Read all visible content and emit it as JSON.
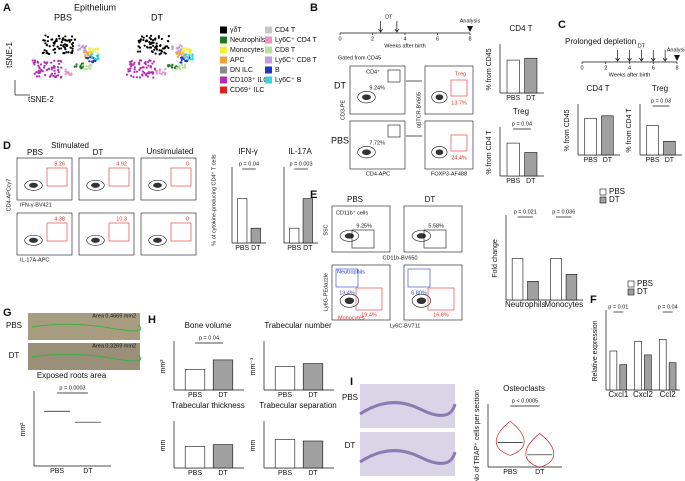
{
  "panel_letters": [
    "A",
    "B",
    "C",
    "D",
    "E",
    "F",
    "G",
    "H",
    "I"
  ],
  "conditions": [
    "PBS",
    "DT"
  ],
  "bar_colors": [
    "#ffffff",
    "#a0a0a0"
  ],
  "A": {
    "title": "Epithelium",
    "plot_titles": [
      "PBS",
      "DT"
    ],
    "x_label": "tSNE-2",
    "y_label": "tSNE-1",
    "legend": [
      {
        "name": "γδT",
        "color": "#000000"
      },
      {
        "name": "Neutrophils",
        "color": "#1f7a1f"
      },
      {
        "name": "Monocytes",
        "color": "#f3ef3a"
      },
      {
        "name": "APC",
        "color": "#f0a040"
      },
      {
        "name": "DN ILC",
        "color": "#8a8a8a"
      },
      {
        "name": "CD103⁺ ILC",
        "color": "#b42bb4"
      },
      {
        "name": "CD69⁺ ILC",
        "color": "#e02020"
      },
      {
        "name": "CD4 T",
        "color": "#c7c7c7"
      },
      {
        "name": "Ly6C⁺ CD4 T",
        "color": "#f08fc0"
      },
      {
        "name": "CD8 T",
        "color": "#b8e0a0"
      },
      {
        "name": "Ly6C⁺ CD8 T",
        "color": "#c39be0"
      },
      {
        "name": "B",
        "color": "#2035c0"
      },
      {
        "name": "Ly6C⁺ B",
        "color": "#3ad0e0"
      }
    ]
  },
  "B": {
    "timeline": {
      "event": "DT",
      "end": "Analysis",
      "label": "Weeks after birth",
      "ticks": [
        0,
        2,
        4,
        6,
        8
      ],
      "xlim": [
        0,
        8
      ],
      "dt_weeks": [
        2.5,
        3.5
      ],
      "analysis_week": 8
    },
    "flow": {
      "gate_note": "Gated from CD45",
      "rows": [
        "DT",
        "PBS"
      ],
      "gate": "CD4⁺",
      "cd4_pct": [
        "9.24%",
        "7.72%"
      ],
      "treg": "Treg",
      "treg_pct": [
        "13.7%",
        "24.4%"
      ],
      "x1": "CD4-APC",
      "y1": "CD3-PE",
      "x2": "FOXP3-AF488",
      "y2": "αβTCR-BV605"
    },
    "charts": [
      {
        "title": "CD4 T",
        "ylabel": "% from CD45",
        "ylim": [
          0,
          10
        ],
        "groups": [
          {
            "values": [
              7,
              7.4
            ]
          }
        ]
      },
      {
        "title": "Treg",
        "p": "p = 0.04",
        "ylabel": "% from CD4 T",
        "ylim": [
          0,
          20
        ],
        "groups": [
          {
            "values": [
              14,
              10
            ]
          }
        ]
      }
    ]
  },
  "C": {
    "title": "Prolonged depletion",
    "timeline": {
      "event": "DT",
      "end": "Analysis",
      "label": "Weeks after birth",
      "ticks": [
        0,
        2,
        4,
        6,
        8
      ],
      "xlim": [
        0,
        8
      ],
      "dt_weeks": [
        3,
        4,
        5,
        6,
        7
      ],
      "analysis_week": 8
    },
    "charts": [
      {
        "title": "CD4 T",
        "ylabel": "% from CD45",
        "ylim": [
          0,
          10
        ],
        "groups": [
          {
            "values": [
              7.5,
              8
            ]
          }
        ]
      },
      {
        "title": "Treg",
        "p": "p = 0.03",
        "ylabel": "% from CD4 T",
        "ylim": [
          0,
          25
        ],
        "groups": [
          {
            "values": [
              15,
              7
            ]
          }
        ]
      }
    ]
  },
  "D": {
    "stimulated": "Stimulated",
    "unstimulated": "Unstimulated",
    "pct": [
      [
        "9.26",
        "4.92",
        "0"
      ],
      [
        "4.38",
        "10.3",
        "0"
      ]
    ],
    "y_label": "CD4-APCcy7",
    "x_labels": [
      "IFN-γ-BV421",
      "IL-17A-APC"
    ],
    "chart_ylabel": "% of cytokine-producing CD4⁺ T cells",
    "charts": [
      {
        "title": "IFN-γ",
        "p": "p = 0.04",
        "ylim": [
          0,
          10
        ],
        "groups": [
          {
            "values": [
              6,
              2
            ]
          }
        ]
      },
      {
        "title": "IL-17A",
        "p": "p = 0.003",
        "ylim": [
          0,
          5
        ],
        "groups": [
          {
            "values": [
              1,
              3
            ]
          }
        ]
      }
    ]
  },
  "E": {
    "gate": "CD11b⁺ cells",
    "pct1": [
      "9.25%",
      "5.58%"
    ],
    "ssc": "SSC",
    "x1": "CD11b-BV650",
    "neut": "Neutrophils",
    "mono": "Monocytes",
    "neut_pct": [
      "13.4%",
      "6.80%"
    ],
    "mono_pct": [
      "19.4%",
      "16.6%"
    ],
    "y2": "Ly6G-PEdazzle",
    "x2": "Ly6C-BV711",
    "chart": {
      "ylabel": "Fold change",
      "ylim": [
        0,
        2
      ],
      "groups": [
        {
          "name": "Neutrophils",
          "p": "p = 0.021",
          "values": [
            1.0,
            0.45
          ]
        },
        {
          "name": "Monocytes",
          "p": "p = 0.036",
          "values": [
            1.0,
            0.62
          ]
        }
      ]
    }
  },
  "F": {
    "chart": {
      "ylabel": "Relative expression",
      "ylim": [
        0,
        2
      ],
      "groups": [
        {
          "name": "Cxcl1",
          "p": "p = 0.01",
          "values": [
            1.0,
            0.65
          ]
        },
        {
          "name": "Cxcl2",
          "values": [
            1.25,
            0.9
          ]
        },
        {
          "name": "Ccl2",
          "p": "p = 0.04",
          "values": [
            1.3,
            0.7
          ]
        }
      ]
    }
  },
  "G": {
    "areas": [
      "Area 0.4669 mm2",
      "Area 0.3269 mm2"
    ],
    "chart": {
      "title": "Exposed roots area",
      "p": "p = 0.0003",
      "ylabel": "mm²",
      "ylim": [
        0,
        0.8
      ],
      "kind": "dot",
      "groups": [
        {
          "values": [
            0.6,
            0.48
          ]
        }
      ]
    }
  },
  "H": {
    "charts": [
      {
        "title": "Bone volume",
        "p": "p = 0.04",
        "ylabel": "mm³",
        "ylim": [
          0,
          0.05
        ],
        "groups": [
          {
            "values": [
              0.022,
              0.032
            ]
          }
        ]
      },
      {
        "title": "Trabecular number",
        "ylabel": "mm⁻¹",
        "ylim": [
          0,
          8
        ],
        "groups": [
          {
            "values": [
              4,
              4.5
            ]
          }
        ]
      },
      {
        "title": "Trabecular thickness",
        "ylabel": "mm",
        "ylim": [
          0,
          0.25
        ],
        "groups": [
          {
            "values": [
              0.12,
              0.13
            ]
          }
        ]
      },
      {
        "title": "Trabecular separation",
        "ylabel": "mm",
        "ylim": [
          0,
          0.3
        ],
        "groups": [
          {
            "values": [
              0.19,
              0.18
            ]
          }
        ]
      }
    ]
  },
  "I": {
    "chart": {
      "title": "Osteoclasts",
      "p": "p < 0.0005",
      "ylabel": "No of TRAP⁺ cells per section",
      "ylim": [
        0,
        15
      ],
      "kind": "violin",
      "groups": [
        {
          "values": [
            6,
            3
          ]
        }
      ]
    }
  }
}
